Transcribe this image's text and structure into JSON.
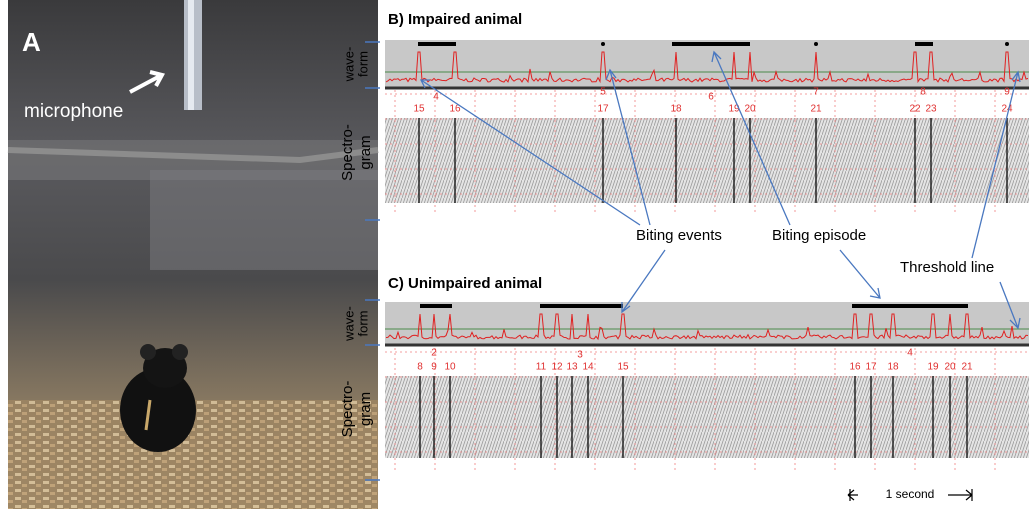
{
  "panel_a": {
    "label": "A",
    "annotation": "microphone"
  },
  "panel_b": {
    "title": "B) Impaired animal",
    "waveform_label": [
      "wave-",
      "form"
    ],
    "spectrogram_label": [
      "Spectro-",
      "gram"
    ],
    "episode_numbers": [
      "4",
      "5",
      "6",
      "7",
      "8",
      "9"
    ],
    "event_numbers": [
      "15",
      "16",
      "17",
      "18",
      "19",
      "20",
      "21",
      "22",
      "23",
      "24"
    ]
  },
  "panel_c": {
    "title": "C) Unimpaired animal",
    "waveform_label": [
      "wave-",
      "form"
    ],
    "spectrogram_label": [
      "Spectro-",
      "gram"
    ],
    "episode_numbers": [
      "2",
      "3",
      "4"
    ],
    "event_numbers": [
      "8",
      "9",
      "10",
      "11",
      "12",
      "13",
      "14",
      "15",
      "16",
      "17",
      "18",
      "19",
      "20",
      "21"
    ],
    "scale_label": "1 second"
  },
  "callouts": {
    "biting_events": "Biting events",
    "biting_episode": "Biting episode",
    "threshold_line": "Threshold line"
  }
}
